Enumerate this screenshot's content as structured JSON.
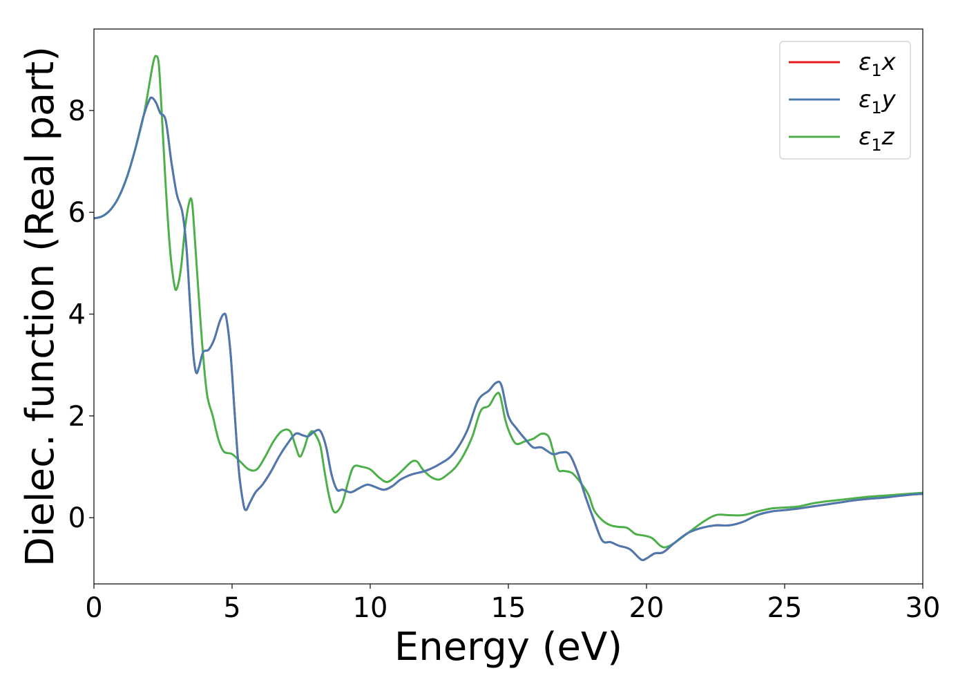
{
  "chart_data": {
    "type": "line",
    "xlabel": "Energy (eV)",
    "ylabel": "Dielec. function (Real part)",
    "xlim": [
      0,
      30
    ],
    "ylim": [
      -1.3,
      9.6
    ],
    "xticks": [
      "0",
      "5",
      "10",
      "15",
      "20",
      "25",
      "30"
    ],
    "yticks": [
      "0",
      "2",
      "4",
      "6",
      "8"
    ],
    "grid": false,
    "legend_position": "top-right",
    "series": [
      {
        "name": "ε₁x",
        "legend_base": "ε",
        "legend_sub": "1",
        "legend_var": "x",
        "color": "#e41a1c",
        "points": [
          [
            0,
            5.88
          ],
          [
            0.3,
            5.92
          ],
          [
            0.6,
            6.05
          ],
          [
            0.9,
            6.3
          ],
          [
            1.2,
            6.7
          ],
          [
            1.5,
            7.25
          ],
          [
            1.8,
            7.9
          ],
          [
            2.0,
            8.2
          ],
          [
            2.1,
            8.25
          ],
          [
            2.25,
            8.15
          ],
          [
            2.4,
            7.95
          ],
          [
            2.6,
            7.8
          ],
          [
            2.8,
            7.0
          ],
          [
            3.0,
            6.35
          ],
          [
            3.2,
            6.0
          ],
          [
            3.35,
            5.3
          ],
          [
            3.5,
            4.0
          ],
          [
            3.6,
            3.2
          ],
          [
            3.7,
            2.85
          ],
          [
            3.8,
            2.95
          ],
          [
            3.95,
            3.25
          ],
          [
            4.15,
            3.3
          ],
          [
            4.35,
            3.5
          ],
          [
            4.55,
            3.85
          ],
          [
            4.7,
            4.0
          ],
          [
            4.8,
            3.9
          ],
          [
            4.95,
            3.2
          ],
          [
            5.1,
            2.0
          ],
          [
            5.25,
            0.9
          ],
          [
            5.4,
            0.3
          ],
          [
            5.5,
            0.15
          ],
          [
            5.65,
            0.3
          ],
          [
            5.85,
            0.5
          ],
          [
            6.1,
            0.65
          ],
          [
            6.4,
            0.9
          ],
          [
            6.7,
            1.2
          ],
          [
            7.0,
            1.45
          ],
          [
            7.3,
            1.65
          ],
          [
            7.55,
            1.62
          ],
          [
            7.75,
            1.6
          ],
          [
            8.0,
            1.7
          ],
          [
            8.2,
            1.7
          ],
          [
            8.4,
            1.4
          ],
          [
            8.6,
            0.85
          ],
          [
            8.8,
            0.55
          ],
          [
            9.0,
            0.55
          ],
          [
            9.3,
            0.5
          ],
          [
            9.6,
            0.58
          ],
          [
            9.9,
            0.65
          ],
          [
            10.2,
            0.6
          ],
          [
            10.5,
            0.55
          ],
          [
            10.8,
            0.62
          ],
          [
            11.1,
            0.75
          ],
          [
            11.5,
            0.85
          ],
          [
            12.0,
            0.92
          ],
          [
            12.5,
            1.05
          ],
          [
            13.0,
            1.25
          ],
          [
            13.5,
            1.7
          ],
          [
            13.9,
            2.3
          ],
          [
            14.3,
            2.5
          ],
          [
            14.55,
            2.65
          ],
          [
            14.75,
            2.6
          ],
          [
            15.0,
            2.0
          ],
          [
            15.3,
            1.75
          ],
          [
            15.6,
            1.55
          ],
          [
            15.9,
            1.38
          ],
          [
            16.2,
            1.38
          ],
          [
            16.6,
            1.25
          ],
          [
            16.9,
            1.28
          ],
          [
            17.2,
            1.25
          ],
          [
            17.5,
            0.9
          ],
          [
            17.8,
            0.4
          ],
          [
            18.1,
            -0.05
          ],
          [
            18.4,
            -0.45
          ],
          [
            18.7,
            -0.48
          ],
          [
            19.0,
            -0.55
          ],
          [
            19.4,
            -0.62
          ],
          [
            19.8,
            -0.82
          ],
          [
            20.0,
            -0.8
          ],
          [
            20.3,
            -0.7
          ],
          [
            20.6,
            -0.68
          ],
          [
            21.0,
            -0.5
          ],
          [
            21.5,
            -0.3
          ],
          [
            22.0,
            -0.2
          ],
          [
            22.5,
            -0.15
          ],
          [
            23.0,
            -0.15
          ],
          [
            23.5,
            -0.08
          ],
          [
            24.0,
            0.05
          ],
          [
            24.5,
            0.12
          ],
          [
            25.0,
            0.15
          ],
          [
            25.5,
            0.18
          ],
          [
            26.0,
            0.22
          ],
          [
            26.5,
            0.26
          ],
          [
            27.0,
            0.3
          ],
          [
            27.5,
            0.34
          ],
          [
            28.0,
            0.37
          ],
          [
            28.5,
            0.39
          ],
          [
            29.0,
            0.42
          ],
          [
            29.5,
            0.45
          ],
          [
            30.0,
            0.47
          ]
        ]
      },
      {
        "name": "ε₁y",
        "legend_base": "ε",
        "legend_sub": "1",
        "legend_var": "y",
        "color": "#4a7ab0",
        "points": [
          [
            0,
            5.88
          ],
          [
            0.3,
            5.92
          ],
          [
            0.6,
            6.05
          ],
          [
            0.9,
            6.3
          ],
          [
            1.2,
            6.7
          ],
          [
            1.5,
            7.25
          ],
          [
            1.8,
            7.9
          ],
          [
            2.0,
            8.2
          ],
          [
            2.1,
            8.25
          ],
          [
            2.25,
            8.15
          ],
          [
            2.4,
            7.95
          ],
          [
            2.6,
            7.8
          ],
          [
            2.8,
            7.0
          ],
          [
            3.0,
            6.35
          ],
          [
            3.2,
            6.0
          ],
          [
            3.35,
            5.3
          ],
          [
            3.5,
            4.0
          ],
          [
            3.6,
            3.2
          ],
          [
            3.7,
            2.85
          ],
          [
            3.8,
            2.95
          ],
          [
            3.95,
            3.25
          ],
          [
            4.15,
            3.3
          ],
          [
            4.35,
            3.5
          ],
          [
            4.55,
            3.85
          ],
          [
            4.7,
            4.0
          ],
          [
            4.8,
            3.9
          ],
          [
            4.95,
            3.2
          ],
          [
            5.1,
            2.0
          ],
          [
            5.25,
            0.9
          ],
          [
            5.4,
            0.3
          ],
          [
            5.5,
            0.15
          ],
          [
            5.65,
            0.3
          ],
          [
            5.85,
            0.5
          ],
          [
            6.1,
            0.65
          ],
          [
            6.4,
            0.9
          ],
          [
            6.7,
            1.2
          ],
          [
            7.0,
            1.45
          ],
          [
            7.3,
            1.65
          ],
          [
            7.55,
            1.62
          ],
          [
            7.75,
            1.6
          ],
          [
            8.0,
            1.7
          ],
          [
            8.2,
            1.7
          ],
          [
            8.4,
            1.4
          ],
          [
            8.6,
            0.85
          ],
          [
            8.8,
            0.55
          ],
          [
            9.0,
            0.55
          ],
          [
            9.3,
            0.5
          ],
          [
            9.6,
            0.58
          ],
          [
            9.9,
            0.65
          ],
          [
            10.2,
            0.6
          ],
          [
            10.5,
            0.55
          ],
          [
            10.8,
            0.62
          ],
          [
            11.1,
            0.75
          ],
          [
            11.5,
            0.85
          ],
          [
            12.0,
            0.92
          ],
          [
            12.5,
            1.05
          ],
          [
            13.0,
            1.25
          ],
          [
            13.5,
            1.7
          ],
          [
            13.9,
            2.3
          ],
          [
            14.3,
            2.5
          ],
          [
            14.55,
            2.65
          ],
          [
            14.75,
            2.6
          ],
          [
            15.0,
            2.0
          ],
          [
            15.3,
            1.75
          ],
          [
            15.6,
            1.55
          ],
          [
            15.9,
            1.38
          ],
          [
            16.2,
            1.38
          ],
          [
            16.6,
            1.25
          ],
          [
            16.9,
            1.28
          ],
          [
            17.2,
            1.25
          ],
          [
            17.5,
            0.9
          ],
          [
            17.8,
            0.4
          ],
          [
            18.1,
            -0.05
          ],
          [
            18.4,
            -0.45
          ],
          [
            18.7,
            -0.48
          ],
          [
            19.0,
            -0.55
          ],
          [
            19.4,
            -0.62
          ],
          [
            19.8,
            -0.82
          ],
          [
            20.0,
            -0.8
          ],
          [
            20.3,
            -0.7
          ],
          [
            20.6,
            -0.68
          ],
          [
            21.0,
            -0.5
          ],
          [
            21.5,
            -0.3
          ],
          [
            22.0,
            -0.2
          ],
          [
            22.5,
            -0.15
          ],
          [
            23.0,
            -0.15
          ],
          [
            23.5,
            -0.08
          ],
          [
            24.0,
            0.05
          ],
          [
            24.5,
            0.12
          ],
          [
            25.0,
            0.15
          ],
          [
            25.5,
            0.18
          ],
          [
            26.0,
            0.22
          ],
          [
            26.5,
            0.26
          ],
          [
            27.0,
            0.3
          ],
          [
            27.5,
            0.34
          ],
          [
            28.0,
            0.37
          ],
          [
            28.5,
            0.39
          ],
          [
            29.0,
            0.42
          ],
          [
            29.5,
            0.45
          ],
          [
            30.0,
            0.47
          ]
        ]
      },
      {
        "name": "ε₁z",
        "legend_base": "ε",
        "legend_sub": "1",
        "legend_var": "z",
        "color": "#4daf4a",
        "points": [
          [
            0,
            5.88
          ],
          [
            0.3,
            5.92
          ],
          [
            0.6,
            6.05
          ],
          [
            0.9,
            6.3
          ],
          [
            1.2,
            6.7
          ],
          [
            1.5,
            7.25
          ],
          [
            1.8,
            7.9
          ],
          [
            2.0,
            8.5
          ],
          [
            2.15,
            8.95
          ],
          [
            2.25,
            9.07
          ],
          [
            2.35,
            8.9
          ],
          [
            2.45,
            8.0
          ],
          [
            2.6,
            6.5
          ],
          [
            2.75,
            5.3
          ],
          [
            2.9,
            4.6
          ],
          [
            3.0,
            4.5
          ],
          [
            3.15,
            4.9
          ],
          [
            3.3,
            5.7
          ],
          [
            3.45,
            6.2
          ],
          [
            3.55,
            6.2
          ],
          [
            3.65,
            5.5
          ],
          [
            3.8,
            4.3
          ],
          [
            3.95,
            3.2
          ],
          [
            4.1,
            2.4
          ],
          [
            4.3,
            2.0
          ],
          [
            4.5,
            1.55
          ],
          [
            4.7,
            1.3
          ],
          [
            5.0,
            1.25
          ],
          [
            5.3,
            1.1
          ],
          [
            5.6,
            0.95
          ],
          [
            5.9,
            0.95
          ],
          [
            6.2,
            1.2
          ],
          [
            6.5,
            1.5
          ],
          [
            6.8,
            1.7
          ],
          [
            7.1,
            1.7
          ],
          [
            7.3,
            1.4
          ],
          [
            7.45,
            1.2
          ],
          [
            7.6,
            1.35
          ],
          [
            7.75,
            1.6
          ],
          [
            7.9,
            1.7
          ],
          [
            8.05,
            1.6
          ],
          [
            8.2,
            1.4
          ],
          [
            8.35,
            0.9
          ],
          [
            8.5,
            0.45
          ],
          [
            8.65,
            0.15
          ],
          [
            8.8,
            0.12
          ],
          [
            9.0,
            0.3
          ],
          [
            9.2,
            0.7
          ],
          [
            9.4,
            1.0
          ],
          [
            9.7,
            1.0
          ],
          [
            10.0,
            0.95
          ],
          [
            10.3,
            0.8
          ],
          [
            10.6,
            0.7
          ],
          [
            10.9,
            0.8
          ],
          [
            11.2,
            0.95
          ],
          [
            11.5,
            1.1
          ],
          [
            11.7,
            1.1
          ],
          [
            11.9,
            0.95
          ],
          [
            12.2,
            0.8
          ],
          [
            12.5,
            0.75
          ],
          [
            12.8,
            0.85
          ],
          [
            13.1,
            1.0
          ],
          [
            13.4,
            1.25
          ],
          [
            13.7,
            1.6
          ],
          [
            14.0,
            2.1
          ],
          [
            14.3,
            2.2
          ],
          [
            14.55,
            2.42
          ],
          [
            14.7,
            2.4
          ],
          [
            14.9,
            1.9
          ],
          [
            15.1,
            1.6
          ],
          [
            15.3,
            1.45
          ],
          [
            15.6,
            1.5
          ],
          [
            15.9,
            1.55
          ],
          [
            16.2,
            1.65
          ],
          [
            16.45,
            1.6
          ],
          [
            16.6,
            1.35
          ],
          [
            16.8,
            0.95
          ],
          [
            17.0,
            0.92
          ],
          [
            17.3,
            0.88
          ],
          [
            17.6,
            0.7
          ],
          [
            17.9,
            0.45
          ],
          [
            18.1,
            0.15
          ],
          [
            18.4,
            -0.05
          ],
          [
            18.7,
            -0.15
          ],
          [
            19.0,
            -0.18
          ],
          [
            19.3,
            -0.2
          ],
          [
            19.6,
            -0.32
          ],
          [
            19.9,
            -0.35
          ],
          [
            20.2,
            -0.4
          ],
          [
            20.5,
            -0.55
          ],
          [
            20.7,
            -0.58
          ],
          [
            21.0,
            -0.5
          ],
          [
            21.5,
            -0.3
          ],
          [
            22.0,
            -0.1
          ],
          [
            22.5,
            0.05
          ],
          [
            23.0,
            0.05
          ],
          [
            23.5,
            0.05
          ],
          [
            24.0,
            0.12
          ],
          [
            24.5,
            0.18
          ],
          [
            25.0,
            0.2
          ],
          [
            25.5,
            0.22
          ],
          [
            26.0,
            0.28
          ],
          [
            26.5,
            0.32
          ],
          [
            27.0,
            0.35
          ],
          [
            27.5,
            0.38
          ],
          [
            28.0,
            0.41
          ],
          [
            28.5,
            0.43
          ],
          [
            29.0,
            0.45
          ],
          [
            29.5,
            0.47
          ],
          [
            30.0,
            0.49
          ]
        ]
      }
    ]
  }
}
